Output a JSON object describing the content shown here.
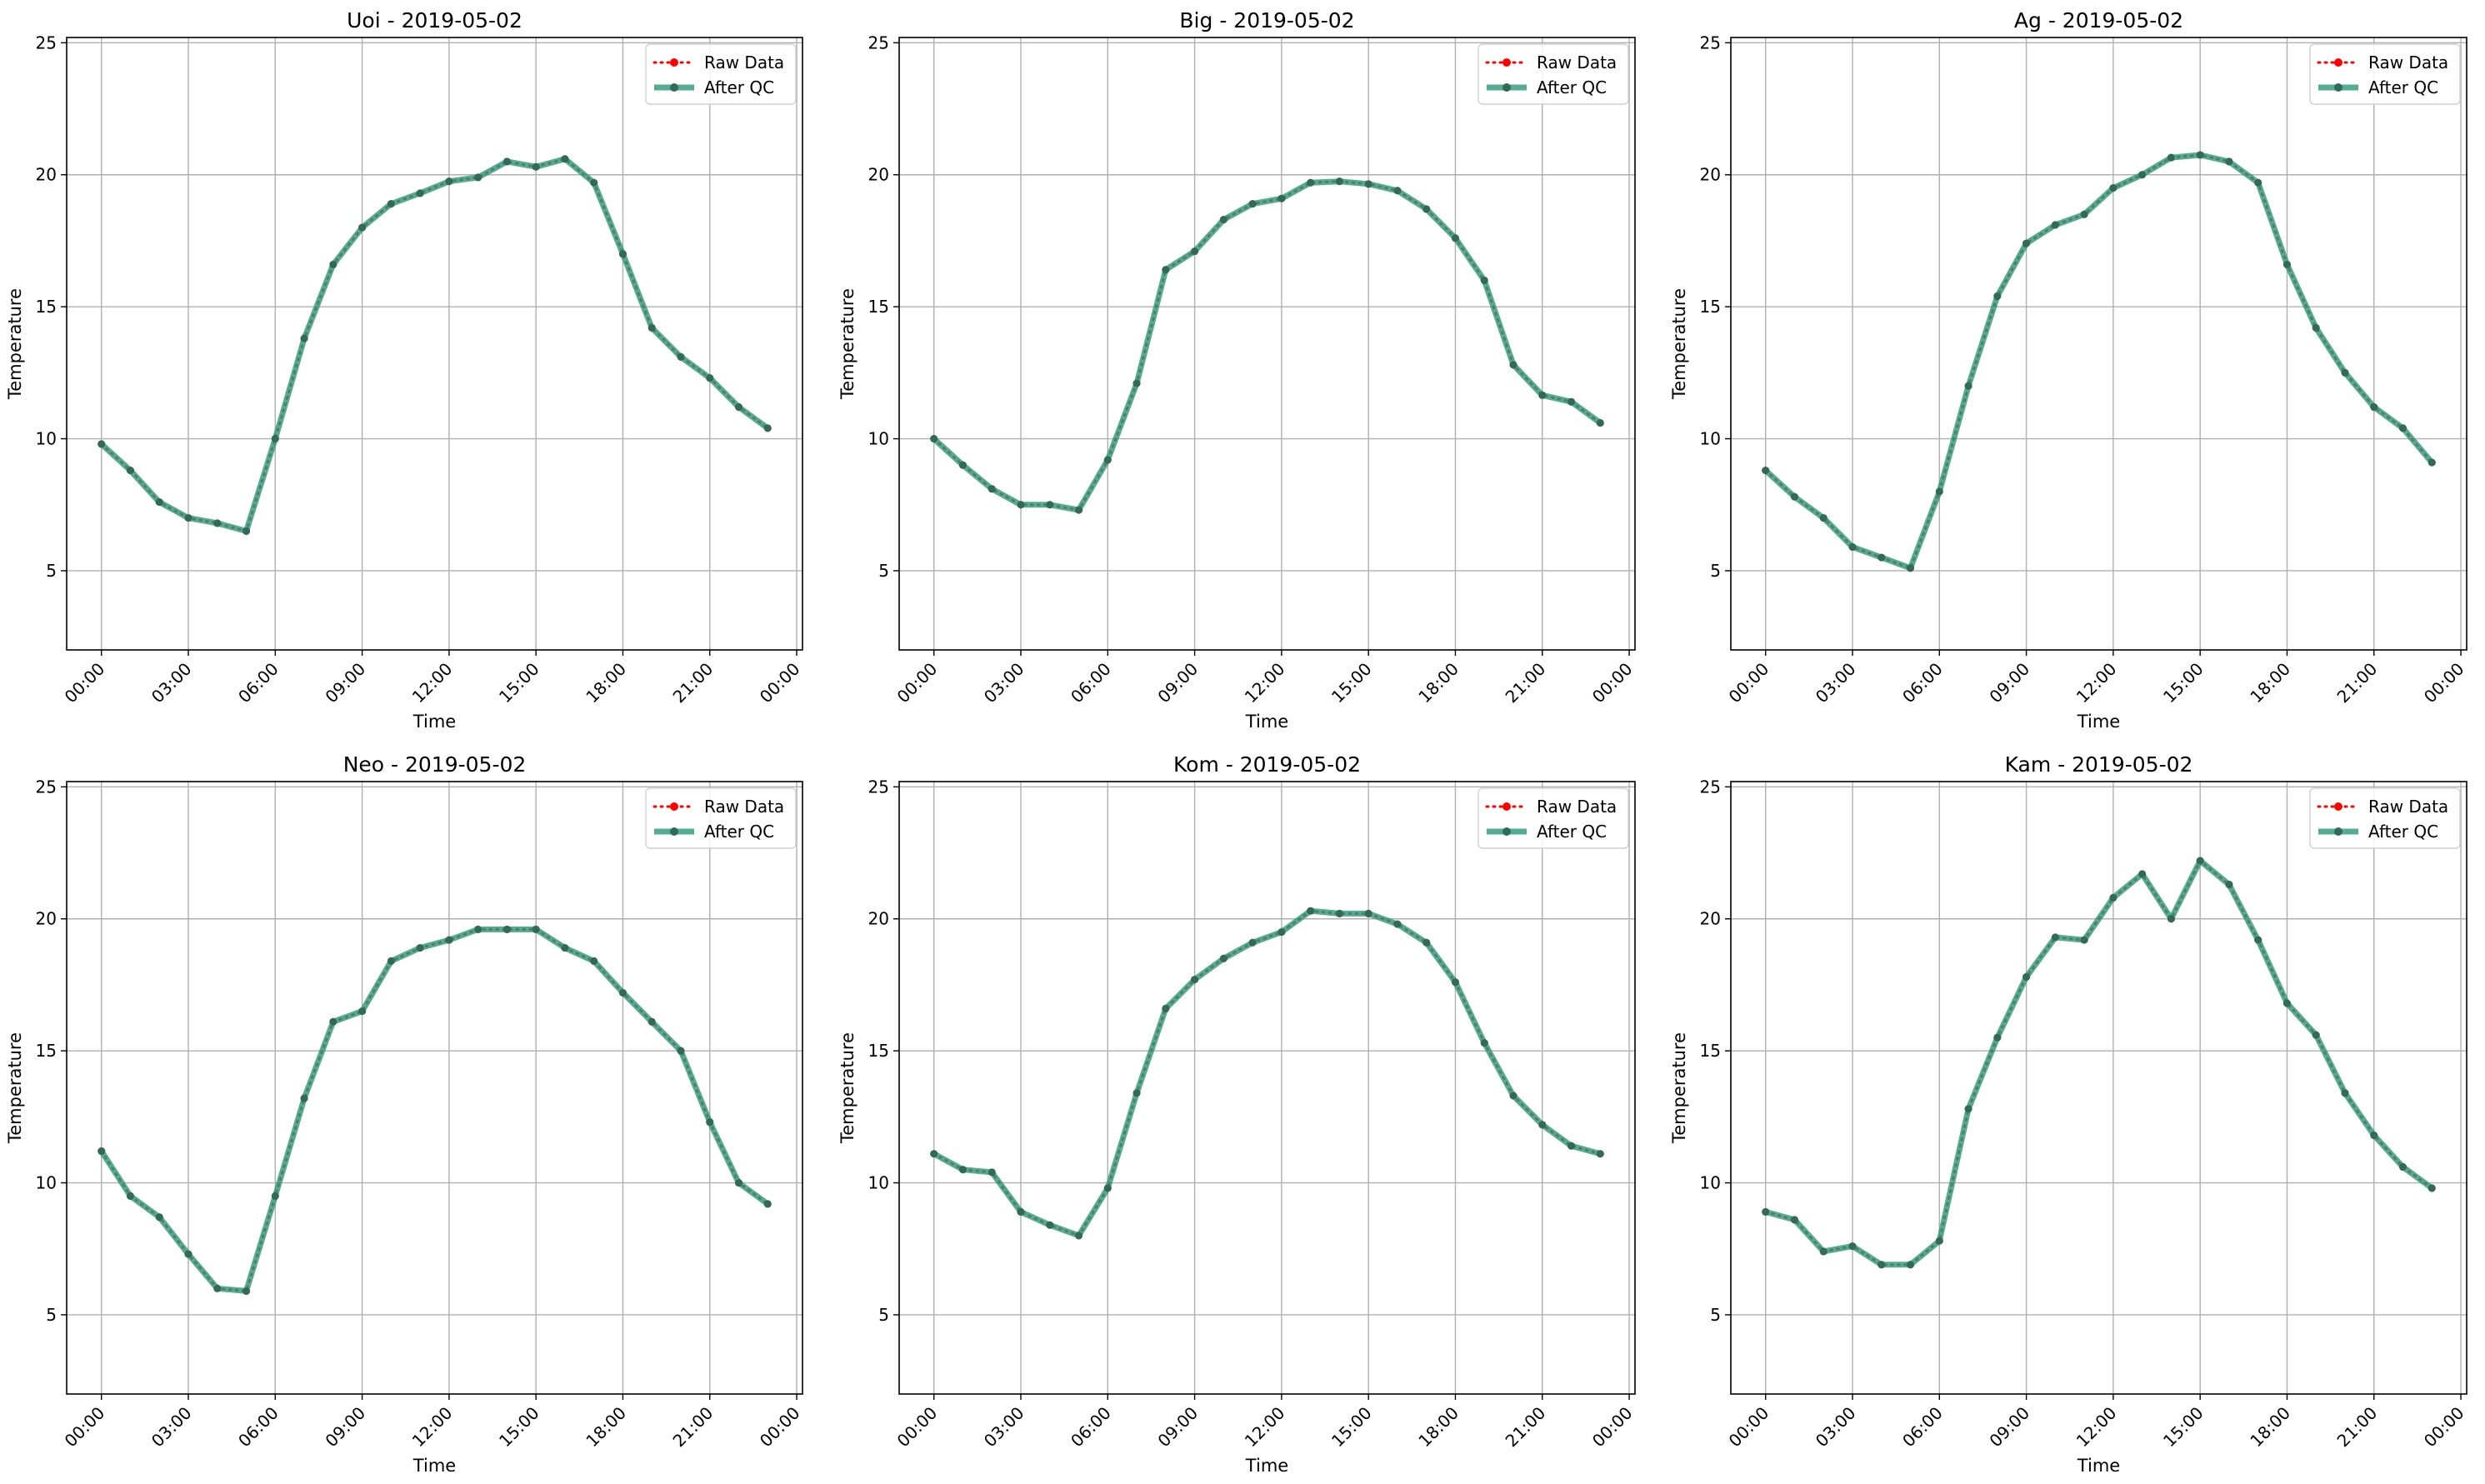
{
  "colors": {
    "raw": "#ff0000",
    "qc": "#2e9a7a",
    "qc_marker": "#2f6b57",
    "grid": "#b0b0b0",
    "spine": "#000000"
  },
  "chart_data": [
    {
      "type": "line",
      "title": "Uoi - 2019-05-02",
      "xlabel": "Time",
      "ylabel": "Temperature",
      "x": [
        "00:00",
        "01:00",
        "02:00",
        "03:00",
        "04:00",
        "05:00",
        "06:00",
        "07:00",
        "08:00",
        "09:00",
        "10:00",
        "11:00",
        "12:00",
        "13:00",
        "14:00",
        "15:00",
        "16:00",
        "17:00",
        "18:00",
        "19:00",
        "20:00",
        "21:00",
        "22:00",
        "23:00"
      ],
      "xticks": [
        "00:00",
        "03:00",
        "06:00",
        "09:00",
        "12:00",
        "15:00",
        "18:00",
        "21:00",
        "00:00"
      ],
      "yticks": [
        5,
        10,
        15,
        20,
        25
      ],
      "xlim_hours": [
        -1.2,
        24.2
      ],
      "ylim": [
        2,
        25.2
      ],
      "grid": true,
      "legend_position": "top-right",
      "series": [
        {
          "name": "Raw Data",
          "values": [
            9.8,
            8.8,
            7.6,
            7.0,
            6.8,
            6.5,
            10.0,
            13.8,
            16.6,
            18.0,
            18.9,
            19.3,
            19.75,
            19.9,
            20.5,
            20.3,
            20.6,
            19.7,
            17.0,
            14.2,
            13.1,
            12.3,
            11.2,
            10.4
          ]
        },
        {
          "name": "After QC",
          "values": [
            9.8,
            8.8,
            7.6,
            7.0,
            6.8,
            6.5,
            10.0,
            13.8,
            16.6,
            18.0,
            18.9,
            19.3,
            19.75,
            19.9,
            20.5,
            20.3,
            20.6,
            19.7,
            17.0,
            14.2,
            13.1,
            12.3,
            11.2,
            10.4
          ]
        }
      ]
    },
    {
      "type": "line",
      "title": "Big - 2019-05-02",
      "xlabel": "Time",
      "ylabel": "Temperature",
      "x": [
        "00:00",
        "01:00",
        "02:00",
        "03:00",
        "04:00",
        "05:00",
        "06:00",
        "07:00",
        "08:00",
        "09:00",
        "10:00",
        "11:00",
        "12:00",
        "13:00",
        "14:00",
        "15:00",
        "16:00",
        "17:00",
        "18:00",
        "19:00",
        "20:00",
        "21:00",
        "22:00",
        "23:00"
      ],
      "xticks": [
        "00:00",
        "03:00",
        "06:00",
        "09:00",
        "12:00",
        "15:00",
        "18:00",
        "21:00",
        "00:00"
      ],
      "yticks": [
        5,
        10,
        15,
        20,
        25
      ],
      "xlim_hours": [
        -1.2,
        24.2
      ],
      "ylim": [
        2,
        25.2
      ],
      "grid": true,
      "legend_position": "top-right",
      "series": [
        {
          "name": "Raw Data",
          "values": [
            10.0,
            9.0,
            8.1,
            7.5,
            7.5,
            7.3,
            9.2,
            12.1,
            16.4,
            17.1,
            18.3,
            18.9,
            19.1,
            19.7,
            19.75,
            19.65,
            19.4,
            18.7,
            17.6,
            16.0,
            12.8,
            11.65,
            11.4,
            10.6
          ]
        },
        {
          "name": "After QC",
          "values": [
            10.0,
            9.0,
            8.1,
            7.5,
            7.5,
            7.3,
            9.2,
            12.1,
            16.4,
            17.1,
            18.3,
            18.9,
            19.1,
            19.7,
            19.75,
            19.65,
            19.4,
            18.7,
            17.6,
            16.0,
            12.8,
            11.65,
            11.4,
            10.6
          ]
        }
      ]
    },
    {
      "type": "line",
      "title": "Ag - 2019-05-02",
      "xlabel": "Time",
      "ylabel": "Temperature",
      "x": [
        "00:00",
        "01:00",
        "02:00",
        "03:00",
        "04:00",
        "05:00",
        "06:00",
        "07:00",
        "08:00",
        "09:00",
        "10:00",
        "11:00",
        "12:00",
        "13:00",
        "14:00",
        "15:00",
        "16:00",
        "17:00",
        "18:00",
        "19:00",
        "20:00",
        "21:00",
        "22:00",
        "23:00"
      ],
      "xticks": [
        "00:00",
        "03:00",
        "06:00",
        "09:00",
        "12:00",
        "15:00",
        "18:00",
        "21:00",
        "00:00"
      ],
      "yticks": [
        5,
        10,
        15,
        20,
        25
      ],
      "xlim_hours": [
        -1.2,
        24.2
      ],
      "ylim": [
        2,
        25.2
      ],
      "grid": true,
      "legend_position": "top-right",
      "series": [
        {
          "name": "Raw Data",
          "values": [
            8.8,
            7.8,
            7.0,
            5.9,
            5.5,
            5.1,
            8.0,
            12.0,
            15.4,
            17.4,
            18.1,
            18.5,
            19.5,
            20.0,
            20.65,
            20.75,
            20.5,
            19.7,
            16.6,
            14.2,
            12.5,
            11.2,
            10.4,
            9.1
          ]
        },
        {
          "name": "After QC",
          "values": [
            8.8,
            7.8,
            7.0,
            5.9,
            5.5,
            5.1,
            8.0,
            12.0,
            15.4,
            17.4,
            18.1,
            18.5,
            19.5,
            20.0,
            20.65,
            20.75,
            20.5,
            19.7,
            16.6,
            14.2,
            12.5,
            11.2,
            10.4,
            9.1
          ]
        }
      ]
    },
    {
      "type": "line",
      "title": "Neo - 2019-05-02",
      "xlabel": "Time",
      "ylabel": "Temperature",
      "x": [
        "00:00",
        "01:00",
        "02:00",
        "03:00",
        "04:00",
        "05:00",
        "06:00",
        "07:00",
        "08:00",
        "09:00",
        "10:00",
        "11:00",
        "12:00",
        "13:00",
        "14:00",
        "15:00",
        "16:00",
        "17:00",
        "18:00",
        "19:00",
        "20:00",
        "21:00",
        "22:00",
        "23:00"
      ],
      "xticks": [
        "00:00",
        "03:00",
        "06:00",
        "09:00",
        "12:00",
        "15:00",
        "18:00",
        "21:00",
        "00:00"
      ],
      "yticks": [
        5,
        10,
        15,
        20,
        25
      ],
      "xlim_hours": [
        -1.2,
        24.2
      ],
      "ylim": [
        2,
        25.2
      ],
      "grid": true,
      "legend_position": "top-right",
      "series": [
        {
          "name": "Raw Data",
          "values": [
            11.2,
            9.5,
            8.7,
            7.3,
            6.0,
            5.9,
            9.5,
            13.2,
            16.1,
            16.5,
            18.4,
            18.9,
            19.2,
            19.6,
            19.6,
            19.6,
            18.9,
            18.4,
            17.2,
            16.1,
            15.0,
            12.3,
            10.0,
            9.2
          ]
        },
        {
          "name": "After QC",
          "values": [
            11.2,
            9.5,
            8.7,
            7.3,
            6.0,
            5.9,
            9.5,
            13.2,
            16.1,
            16.5,
            18.4,
            18.9,
            19.2,
            19.6,
            19.6,
            19.6,
            18.9,
            18.4,
            17.2,
            16.1,
            15.0,
            12.3,
            10.0,
            9.2
          ]
        }
      ]
    },
    {
      "type": "line",
      "title": "Kom - 2019-05-02",
      "xlabel": "Time",
      "ylabel": "Temperature",
      "x": [
        "00:00",
        "01:00",
        "02:00",
        "03:00",
        "04:00",
        "05:00",
        "06:00",
        "07:00",
        "08:00",
        "09:00",
        "10:00",
        "11:00",
        "12:00",
        "13:00",
        "14:00",
        "15:00",
        "16:00",
        "17:00",
        "18:00",
        "19:00",
        "20:00",
        "21:00",
        "22:00",
        "23:00"
      ],
      "xticks": [
        "00:00",
        "03:00",
        "06:00",
        "09:00",
        "12:00",
        "15:00",
        "18:00",
        "21:00",
        "00:00"
      ],
      "yticks": [
        5,
        10,
        15,
        20,
        25
      ],
      "xlim_hours": [
        -1.2,
        24.2
      ],
      "ylim": [
        2,
        25.2
      ],
      "grid": true,
      "legend_position": "top-right",
      "series": [
        {
          "name": "Raw Data",
          "values": [
            11.1,
            10.5,
            10.4,
            8.9,
            8.4,
            8.0,
            9.8,
            13.4,
            16.6,
            17.7,
            18.5,
            19.1,
            19.5,
            20.3,
            20.2,
            20.2,
            19.8,
            19.1,
            17.6,
            15.3,
            13.3,
            12.2,
            11.4,
            11.1
          ]
        },
        {
          "name": "After QC",
          "values": [
            11.1,
            10.5,
            10.4,
            8.9,
            8.4,
            8.0,
            9.8,
            13.4,
            16.6,
            17.7,
            18.5,
            19.1,
            19.5,
            20.3,
            20.2,
            20.2,
            19.8,
            19.1,
            17.6,
            15.3,
            13.3,
            12.2,
            11.4,
            11.1
          ]
        }
      ]
    },
    {
      "type": "line",
      "title": "Kam - 2019-05-02",
      "xlabel": "Time",
      "ylabel": "Temperature",
      "x": [
        "00:00",
        "01:00",
        "02:00",
        "03:00",
        "04:00",
        "05:00",
        "06:00",
        "07:00",
        "08:00",
        "09:00",
        "10:00",
        "11:00",
        "12:00",
        "13:00",
        "14:00",
        "15:00",
        "16:00",
        "17:00",
        "18:00",
        "19:00",
        "20:00",
        "21:00",
        "22:00",
        "23:00"
      ],
      "xticks": [
        "00:00",
        "03:00",
        "06:00",
        "09:00",
        "12:00",
        "15:00",
        "18:00",
        "21:00",
        "00:00"
      ],
      "yticks": [
        5,
        10,
        15,
        20,
        25
      ],
      "xlim_hours": [
        -1.2,
        24.2
      ],
      "ylim": [
        2,
        25.2
      ],
      "grid": true,
      "legend_position": "top-right",
      "series": [
        {
          "name": "Raw Data",
          "values": [
            8.9,
            8.6,
            7.4,
            7.6,
            6.9,
            6.9,
            7.8,
            12.8,
            15.5,
            17.8,
            19.3,
            19.2,
            20.8,
            21.7,
            20.0,
            22.2,
            21.3,
            19.2,
            16.8,
            15.6,
            13.4,
            11.8,
            10.6,
            9.8
          ]
        },
        {
          "name": "After QC",
          "values": [
            8.9,
            8.6,
            7.4,
            7.6,
            6.9,
            6.9,
            7.8,
            12.8,
            15.5,
            17.8,
            19.3,
            19.2,
            20.8,
            21.7,
            20.0,
            22.2,
            21.3,
            19.2,
            16.8,
            15.6,
            13.4,
            11.8,
            10.6,
            9.8
          ]
        }
      ]
    }
  ]
}
